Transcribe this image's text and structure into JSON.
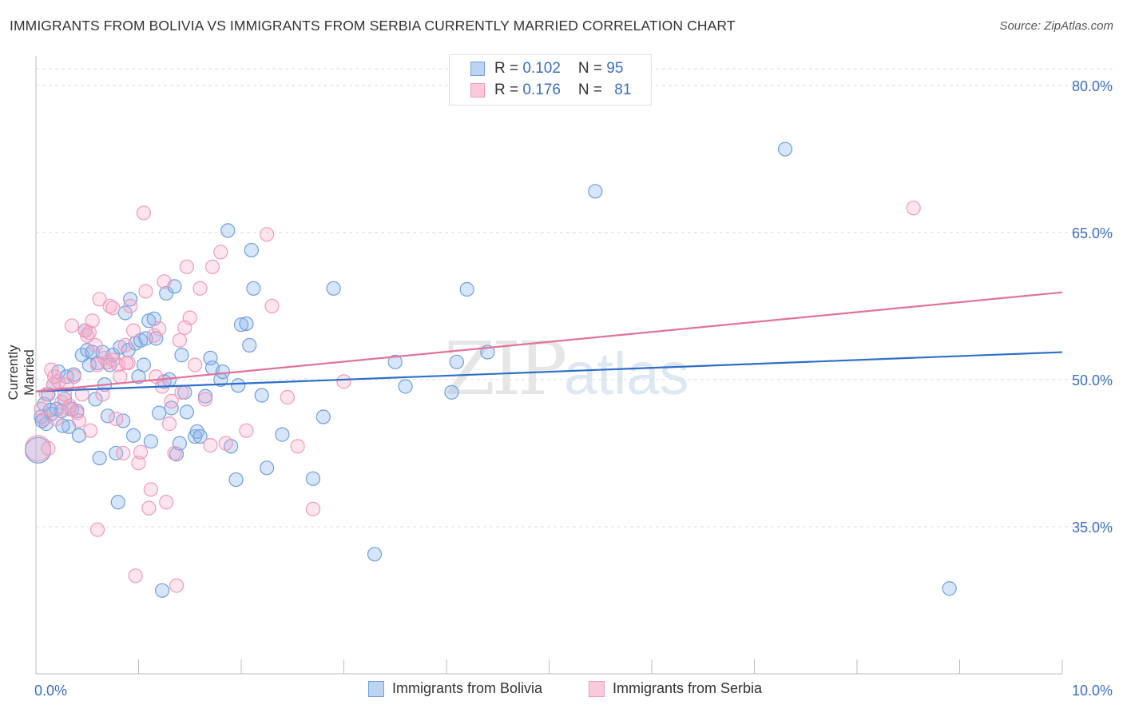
{
  "header": {
    "title": "IMMIGRANTS FROM BOLIVIA VS IMMIGRANTS FROM SERBIA CURRENTLY MARRIED CORRELATION CHART",
    "source": "Source: ZipAtlas.com"
  },
  "watermark": {
    "zip": "ZIP",
    "atlas": "atlas"
  },
  "legend": {
    "rows": [
      {
        "r_label": "R = ",
        "r_value": "0.102",
        "n_label": "N = ",
        "n_value": "95"
      },
      {
        "r_label": "R = ",
        "r_value": "0.176",
        "n_label": "N = ",
        "n_value": "81"
      }
    ]
  },
  "chart_data": {
    "type": "scatter",
    "title": "IMMIGRANTS FROM BOLIVIA VS IMMIGRANTS FROM SERBIA CURRENTLY MARRIED CORRELATION CHART",
    "xlabel": "",
    "ylabel": "Currently Married",
    "xlim": [
      0,
      10
    ],
    "ylim": [
      20,
      83
    ],
    "x_tick_labels": [
      "0.0%",
      "10.0%"
    ],
    "y_ticks": [
      35,
      50,
      65,
      80
    ],
    "y_tick_labels": [
      "35.0%",
      "50.0%",
      "65.0%",
      "80.0%"
    ],
    "grid": true,
    "legend_position": "bottom",
    "colors": {
      "bolivia": "#6f9fe0",
      "serbia": "#f09ab8",
      "bolivia_line": "#2d6fc9",
      "serbia_line": "#e2739a"
    },
    "series": [
      {
        "name": "Immigrants from Bolivia",
        "trend": {
          "x": [
            0.0,
            10.0
          ],
          "y": [
            48.8,
            52.8
          ]
        },
        "points": [
          [
            0.02,
            42.8
          ],
          [
            0.05,
            46.2
          ],
          [
            0.08,
            47.5
          ],
          [
            0.1,
            45.5
          ],
          [
            0.12,
            48.5
          ],
          [
            0.15,
            46.5
          ],
          [
            0.17,
            49.5
          ],
          [
            0.2,
            47.0
          ],
          [
            0.22,
            50.8
          ],
          [
            0.25,
            46.8
          ],
          [
            0.28,
            48.0
          ],
          [
            0.3,
            50.3
          ],
          [
            0.32,
            45.2
          ],
          [
            0.35,
            47.0
          ],
          [
            0.37,
            50.5
          ],
          [
            0.4,
            46.8
          ],
          [
            0.42,
            44.3
          ],
          [
            0.45,
            52.5
          ],
          [
            0.48,
            55.0
          ],
          [
            0.5,
            53.0
          ],
          [
            0.52,
            51.5
          ],
          [
            0.55,
            52.8
          ],
          [
            0.58,
            48.0
          ],
          [
            0.6,
            51.7
          ],
          [
            0.62,
            42.0
          ],
          [
            0.65,
            52.8
          ],
          [
            0.67,
            49.5
          ],
          [
            0.7,
            46.3
          ],
          [
            0.72,
            51.5
          ],
          [
            0.75,
            52.5
          ],
          [
            0.78,
            42.5
          ],
          [
            0.8,
            37.5
          ],
          [
            0.82,
            53.3
          ],
          [
            0.85,
            45.8
          ],
          [
            0.87,
            56.8
          ],
          [
            0.9,
            53.0
          ],
          [
            0.92,
            58.2
          ],
          [
            0.95,
            44.3
          ],
          [
            0.97,
            53.7
          ],
          [
            1.0,
            50.3
          ],
          [
            1.02,
            54.0
          ],
          [
            1.05,
            51.5
          ],
          [
            1.07,
            54.2
          ],
          [
            1.1,
            56.0
          ],
          [
            1.12,
            43.7
          ],
          [
            1.15,
            56.2
          ],
          [
            1.17,
            54.2
          ],
          [
            1.2,
            46.6
          ],
          [
            1.23,
            28.5
          ],
          [
            1.25,
            49.8
          ],
          [
            1.27,
            58.8
          ],
          [
            1.3,
            50.0
          ],
          [
            1.32,
            47.1
          ],
          [
            1.35,
            59.5
          ],
          [
            1.37,
            42.4
          ],
          [
            1.4,
            43.5
          ],
          [
            1.42,
            52.5
          ],
          [
            1.45,
            48.7
          ],
          [
            1.47,
            46.7
          ],
          [
            1.55,
            44.2
          ],
          [
            1.57,
            44.7
          ],
          [
            1.6,
            44.2
          ],
          [
            1.65,
            48.3
          ],
          [
            1.7,
            52.2
          ],
          [
            1.72,
            51.2
          ],
          [
            1.8,
            50.0
          ],
          [
            1.82,
            50.8
          ],
          [
            1.87,
            65.2
          ],
          [
            1.9,
            43.2
          ],
          [
            1.95,
            39.8
          ],
          [
            1.97,
            49.4
          ],
          [
            2.0,
            55.6
          ],
          [
            2.05,
            55.7
          ],
          [
            2.08,
            53.5
          ],
          [
            2.1,
            63.2
          ],
          [
            2.12,
            59.3
          ],
          [
            2.2,
            48.4
          ],
          [
            2.25,
            41.0
          ],
          [
            2.4,
            44.4
          ],
          [
            2.7,
            39.9
          ],
          [
            2.8,
            46.2
          ],
          [
            2.9,
            59.3
          ],
          [
            3.3,
            32.2
          ],
          [
            3.5,
            51.8
          ],
          [
            3.6,
            49.3
          ],
          [
            4.05,
            48.7
          ],
          [
            4.1,
            51.8
          ],
          [
            4.2,
            59.2
          ],
          [
            4.4,
            52.8
          ],
          [
            5.45,
            69.2
          ],
          [
            7.3,
            73.5
          ],
          [
            8.9,
            28.7
          ],
          [
            0.06,
            45.8
          ],
          [
            0.14,
            46.9
          ],
          [
            0.26,
            45.3
          ]
        ]
      },
      {
        "name": "Immigrants from Serbia",
        "trend": {
          "x": [
            0.0,
            10.0
          ],
          "y": [
            48.8,
            58.9
          ]
        },
        "points": [
          [
            0.02,
            43.0
          ],
          [
            0.05,
            47.0
          ],
          [
            0.08,
            46.0
          ],
          [
            0.1,
            48.5
          ],
          [
            0.12,
            43.0
          ],
          [
            0.15,
            51.0
          ],
          [
            0.17,
            49.5
          ],
          [
            0.2,
            46.0
          ],
          [
            0.22,
            49.8
          ],
          [
            0.25,
            47.7
          ],
          [
            0.28,
            48.5
          ],
          [
            0.3,
            49.5
          ],
          [
            0.32,
            47.0
          ],
          [
            0.35,
            55.5
          ],
          [
            0.37,
            50.3
          ],
          [
            0.4,
            46.6
          ],
          [
            0.42,
            45.8
          ],
          [
            0.45,
            48.5
          ],
          [
            0.48,
            55.0
          ],
          [
            0.5,
            54.5
          ],
          [
            0.52,
            54.8
          ],
          [
            0.55,
            56.0
          ],
          [
            0.58,
            53.5
          ],
          [
            0.6,
            51.5
          ],
          [
            0.62,
            58.2
          ],
          [
            0.65,
            48.5
          ],
          [
            0.67,
            52.2
          ],
          [
            0.7,
            51.8
          ],
          [
            0.72,
            57.5
          ],
          [
            0.75,
            52.0
          ],
          [
            0.78,
            46.0
          ],
          [
            0.8,
            51.5
          ],
          [
            0.82,
            50.3
          ],
          [
            0.85,
            42.5
          ],
          [
            0.87,
            53.5
          ],
          [
            0.9,
            51.7
          ],
          [
            0.92,
            57.5
          ],
          [
            0.95,
            55.0
          ],
          [
            0.97,
            30.0
          ],
          [
            1.0,
            41.5
          ],
          [
            1.02,
            42.6
          ],
          [
            1.05,
            67.0
          ],
          [
            1.07,
            59.0
          ],
          [
            1.1,
            36.9
          ],
          [
            1.12,
            38.8
          ],
          [
            1.15,
            54.5
          ],
          [
            1.17,
            50.3
          ],
          [
            1.2,
            55.2
          ],
          [
            1.23,
            49.3
          ],
          [
            1.25,
            60.0
          ],
          [
            1.27,
            37.5
          ],
          [
            1.3,
            45.5
          ],
          [
            1.32,
            47.8
          ],
          [
            1.35,
            42.5
          ],
          [
            1.37,
            29.0
          ],
          [
            1.4,
            54.0
          ],
          [
            1.42,
            48.7
          ],
          [
            1.45,
            55.3
          ],
          [
            1.47,
            61.5
          ],
          [
            1.5,
            56.3
          ],
          [
            1.55,
            51.5
          ],
          [
            1.6,
            59.3
          ],
          [
            1.65,
            48.0
          ],
          [
            1.7,
            43.3
          ],
          [
            1.72,
            61.5
          ],
          [
            1.8,
            63.0
          ],
          [
            1.85,
            43.5
          ],
          [
            2.05,
            44.8
          ],
          [
            2.25,
            64.8
          ],
          [
            2.3,
            57.5
          ],
          [
            2.45,
            48.2
          ],
          [
            2.55,
            43.2
          ],
          [
            2.7,
            36.8
          ],
          [
            3.0,
            49.8
          ],
          [
            8.55,
            67.5
          ],
          [
            0.6,
            34.7
          ],
          [
            0.75,
            57.3
          ],
          [
            0.88,
            51.7
          ],
          [
            0.18,
            50.3
          ],
          [
            0.33,
            47.3
          ],
          [
            0.53,
            44.8
          ]
        ]
      }
    ]
  },
  "bottom_legend": [
    {
      "label": "Immigrants from Bolivia"
    },
    {
      "label": "Immigrants from Serbia"
    }
  ]
}
